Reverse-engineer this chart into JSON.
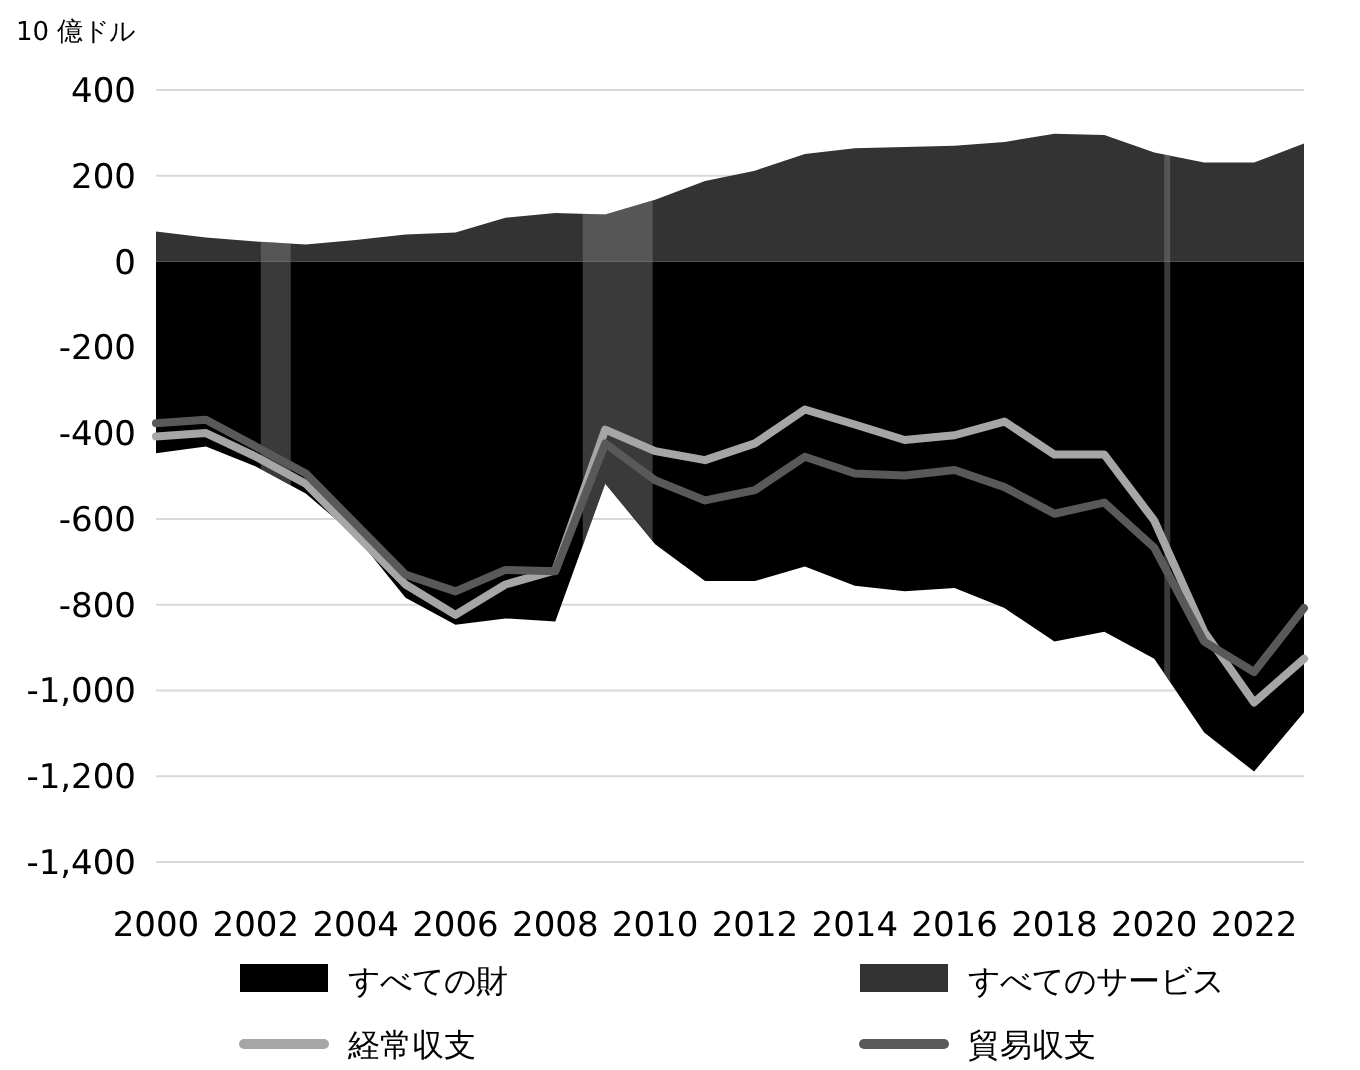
{
  "chart_data": {
    "type": "area",
    "ylabel": "10 億ドル",
    "x": [
      2000,
      2001,
      2002,
      2003,
      2004,
      2005,
      2006,
      2007,
      2008,
      2009,
      2010,
      2011,
      2012,
      2013,
      2014,
      2015,
      2016,
      2017,
      2018,
      2019,
      2020,
      2021,
      2022,
      2023
    ],
    "series": [
      {
        "name": "すべての財",
        "color": "#000000",
        "values": [
          -447,
          -431,
          -478,
          -541,
          -640,
          -784,
          -847,
          -832,
          -839,
          -518,
          -659,
          -745,
          -745,
          -711,
          -756,
          -769,
          -761,
          -808,
          -886,
          -863,
          -926,
          -1098,
          -1189,
          -1051
        ]
      },
      {
        "name": "すべてのサービス",
        "color": "#333333",
        "values": [
          70,
          56,
          47,
          40,
          50,
          63,
          68,
          102,
          113,
          110,
          144,
          188,
          212,
          251,
          264,
          267,
          270,
          279,
          298,
          295,
          254,
          231,
          231,
          275
        ]
      },
      {
        "name": "経常収支",
        "type": "line",
        "color": "#a6a6a6",
        "values": [
          -408,
          -400,
          -455,
          -518,
          -635,
          -753,
          -824,
          -753,
          -720,
          -392,
          -442,
          -463,
          -424,
          -345,
          -380,
          -416,
          -405,
          -373,
          -450,
          -450,
          -604,
          -863,
          -1028,
          -926
        ]
      },
      {
        "name": "貿易収支",
        "type": "line",
        "color": "#595959",
        "values": [
          -377,
          -369,
          -431,
          -494,
          -612,
          -730,
          -769,
          -719,
          -722,
          -424,
          -510,
          -557,
          -533,
          -455,
          -494,
          -499,
          -486,
          -526,
          -588,
          -562,
          -667,
          -886,
          -957,
          -808
        ]
      }
    ],
    "bands": [
      {
        "axis": "x",
        "from": 2002.1,
        "to": 2002.7,
        "color": "#808080"
      },
      {
        "axis": "x",
        "from": 2008.55,
        "to": 2009.95,
        "color": "#808080"
      },
      {
        "axis": "x",
        "from": 2020.2,
        "to": 2020.32,
        "color": "#808080"
      }
    ],
    "xlim": [
      2000,
      2023
    ],
    "xticks": [
      2000,
      2002,
      2004,
      2006,
      2008,
      2010,
      2012,
      2014,
      2016,
      2018,
      2020,
      2022
    ],
    "ylim": [
      -1400,
      400
    ],
    "yticks": [
      400,
      200,
      0,
      -200,
      -400,
      -600,
      -800,
      {
        "value": -1000,
        "label": "-1,000"
      },
      {
        "value": -1200,
        "label": "-1,200"
      },
      {
        "value": -1400,
        "label": "-1,400"
      }
    ],
    "grid": "y",
    "legend": "bottom"
  }
}
